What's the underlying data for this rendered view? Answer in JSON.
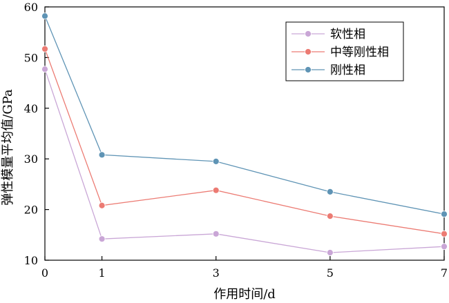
{
  "chart_data": {
    "type": "line",
    "title": "",
    "xlabel": "作用时间/d",
    "ylabel": "弹性模量平均值/GPa",
    "x": [
      0,
      1,
      3,
      5,
      7
    ],
    "x_tick_labels": [
      "0",
      "1",
      "3",
      "5",
      "7"
    ],
    "ylim": [
      10,
      60
    ],
    "y_ticks": [
      10,
      20,
      30,
      40,
      50,
      60
    ],
    "y_tick_labels": [
      "10",
      "20",
      "30",
      "40",
      "50",
      "60"
    ],
    "grid": false,
    "legend_position": "top-right",
    "series": [
      {
        "name": "软性相",
        "color": "#c9a6d6",
        "values": [
          47.7,
          14.2,
          15.2,
          11.5,
          12.7
        ]
      },
      {
        "name": "中等刚性相",
        "color": "#ec7b73",
        "values": [
          51.7,
          20.8,
          23.8,
          18.7,
          15.2
        ]
      },
      {
        "name": "刚性相",
        "color": "#5f94b5",
        "values": [
          58.2,
          30.8,
          29.5,
          23.5,
          19.1
        ]
      }
    ]
  }
}
